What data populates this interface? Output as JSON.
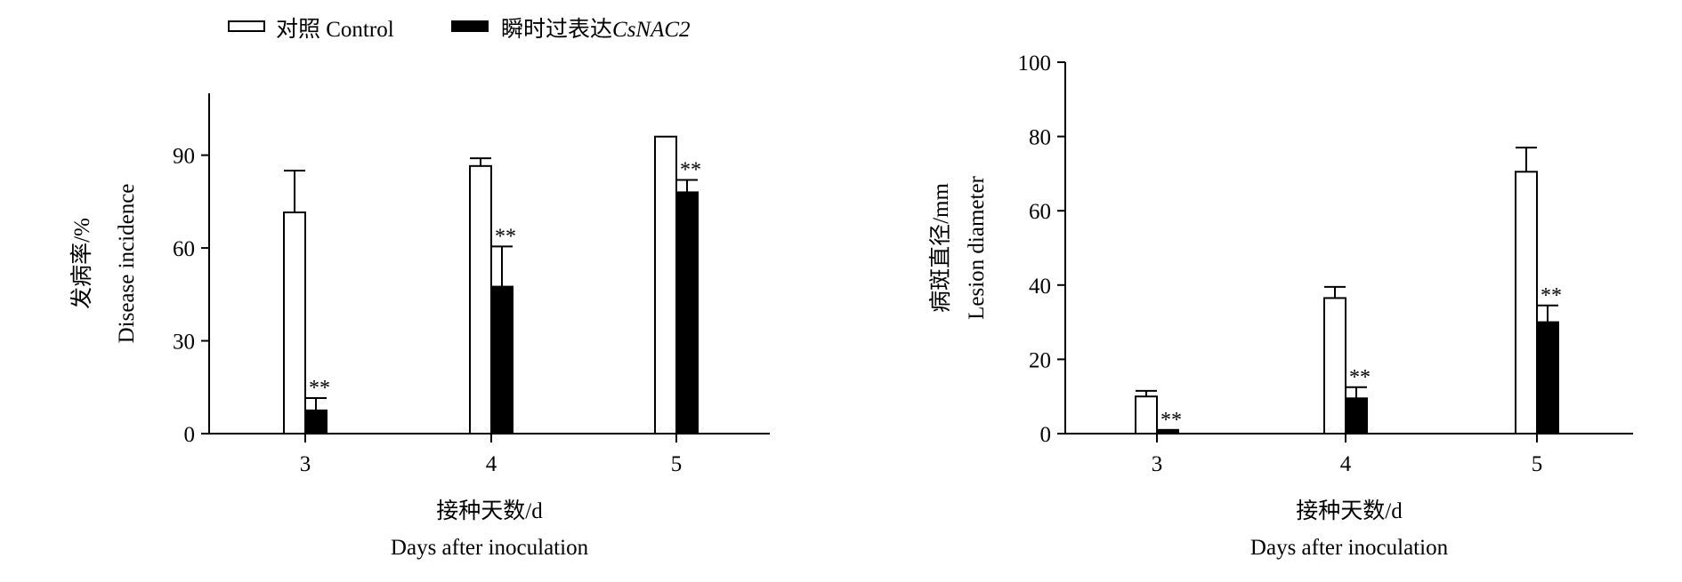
{
  "legend": {
    "control_label": "对照 Control",
    "treatment_label_prefix": "瞬时过表达",
    "treatment_label_gene": "CsNAC2",
    "placement": "top-left"
  },
  "colors": {
    "control_fill": "#ffffff",
    "treatment_fill": "#000000",
    "axis": "#000000"
  },
  "chart_data": [
    {
      "type": "bar",
      "categories": [
        "3",
        "4",
        "5"
      ],
      "series": [
        {
          "name": "对照 Control",
          "values": [
            71.5,
            86.5,
            96
          ],
          "errors": [
            13.5,
            2.5,
            0
          ]
        },
        {
          "name": "瞬时过表达CsNAC2",
          "values": [
            7.5,
            47.5,
            78
          ],
          "errors": [
            4,
            13,
            4
          ]
        }
      ],
      "significance": [
        "**",
        "**",
        "**"
      ],
      "ylabel_cn": "发病率/%",
      "ylabel_en": "Disease incidence",
      "xlabel_cn": "接种天数/d",
      "xlabel_en": "Days after inoculation",
      "yticks": [
        0,
        30,
        60,
        90
      ],
      "ylim": [
        0,
        110
      ],
      "grid": false
    },
    {
      "type": "bar",
      "categories": [
        "3",
        "4",
        "5"
      ],
      "series": [
        {
          "name": "对照 Control",
          "values": [
            10,
            36.5,
            70.5
          ],
          "errors": [
            1.5,
            3,
            6.5
          ]
        },
        {
          "name": "瞬时过表达CsNAC2",
          "values": [
            1,
            9.5,
            30
          ],
          "errors": [
            0,
            3,
            4.5
          ]
        }
      ],
      "significance": [
        "**",
        "**",
        "**"
      ],
      "ylabel_cn": "病斑直径/mm",
      "ylabel_en": "Lesion diameter",
      "xlabel_cn": "接种天数/d",
      "xlabel_en": "Days after inoculation",
      "yticks": [
        0,
        20,
        40,
        60,
        80,
        100
      ],
      "ylim": [
        0,
        100
      ],
      "grid": false
    }
  ]
}
